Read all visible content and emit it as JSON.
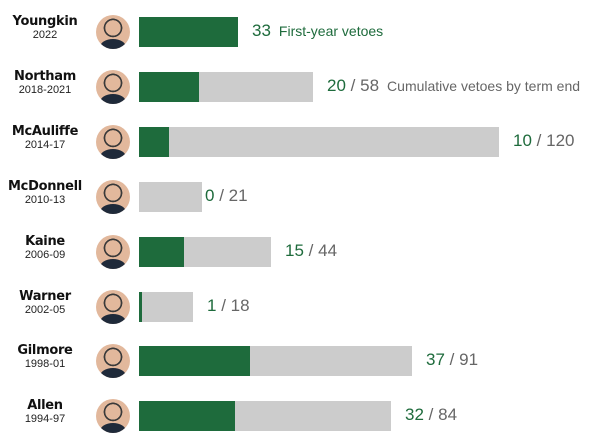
{
  "chart_data": {
    "type": "bar",
    "colors": {
      "first_year": "#1e6b3c",
      "cumulative": "#cccccc"
    },
    "rows": [
      {
        "name": "Youngkin",
        "years": "2022",
        "first_year": 33,
        "total": null,
        "note": "First-year vetoes"
      },
      {
        "name": "Northam",
        "years": "2018-2021",
        "first_year": 20,
        "total": 58,
        "note": "Cumulative vetoes by term end"
      },
      {
        "name": "McAuliffe",
        "years": "2014-17",
        "first_year": 10,
        "total": 120
      },
      {
        "name": "McDonnell",
        "years": "2010-13",
        "first_year": 0,
        "total": 21
      },
      {
        "name": "Kaine",
        "years": "2006-09",
        "first_year": 15,
        "total": 44
      },
      {
        "name": "Warner",
        "years": "2002-05",
        "first_year": 1,
        "total": 18
      },
      {
        "name": "Gilmore",
        "years": "1998-01",
        "first_year": 37,
        "total": 91
      },
      {
        "name": "Allen",
        "years": "1994-97",
        "first_year": 32,
        "total": 84
      }
    ]
  }
}
